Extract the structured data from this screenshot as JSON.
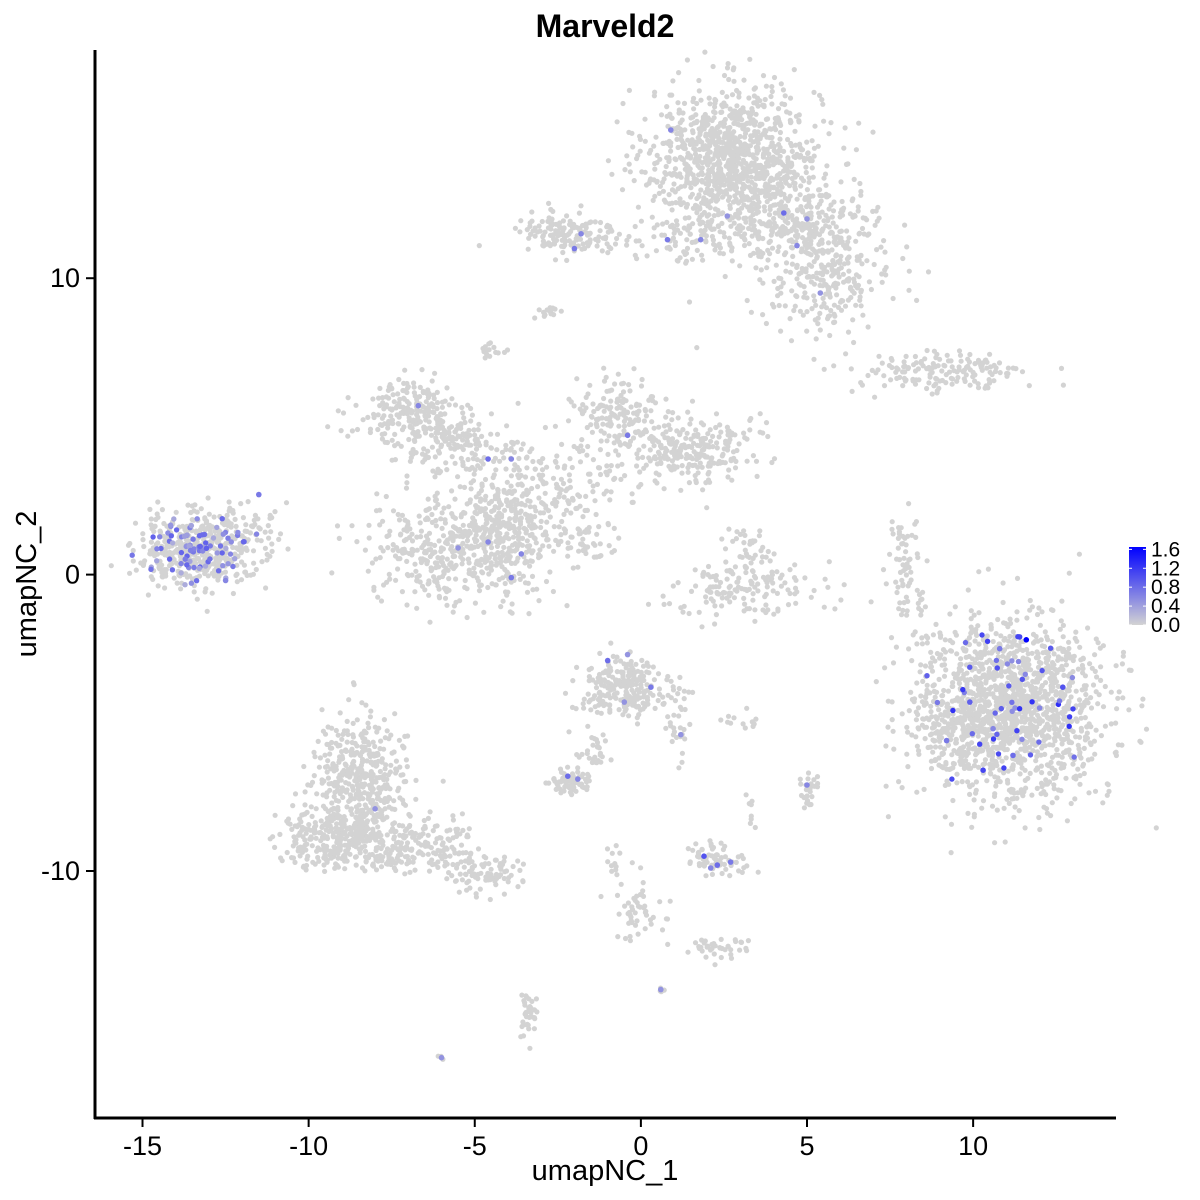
{
  "chart_data": {
    "type": "scatter",
    "title": "Marveld2",
    "xlabel": "umapNC_1",
    "ylabel": "umapNC_2",
    "xlim": [
      -16.4,
      14.3
    ],
    "ylim": [
      -18.3,
      17.7
    ],
    "x_ticks": [
      -15,
      -10,
      -5,
      0,
      5,
      10
    ],
    "x_tick_labels": [
      "-15",
      "-10",
      "-5",
      "0",
      "5",
      "10"
    ],
    "y_ticks": [
      -10,
      0,
      10
    ],
    "y_tick_labels": [
      "-10",
      "0",
      "10"
    ],
    "grid": false,
    "legend_position": "right",
    "colorbar": {
      "min": 0.0,
      "max": 1.65,
      "low_color": "#d3d3d3",
      "high_color": "#0000ff",
      "ticks": [
        0.0,
        0.4,
        0.8,
        1.2,
        1.6
      ],
      "tick_labels": [
        "0.0",
        "0.4",
        "0.8",
        "1.2",
        "1.6"
      ]
    },
    "background_clusters": [
      {
        "cx": 2.8,
        "cy": 14.0,
        "sx": 1.3,
        "sy": 1.2,
        "n": 1100
      },
      {
        "cx": 4.8,
        "cy": 11.8,
        "sx": 1.2,
        "sy": 0.6,
        "n": 260
      },
      {
        "cx": 5.6,
        "cy": 9.9,
        "sx": 1.0,
        "sy": 0.8,
        "n": 240
      },
      {
        "cx": 1.2,
        "cy": 11.3,
        "sx": 1.3,
        "sy": 0.4,
        "n": 80
      },
      {
        "cx": -2.3,
        "cy": 11.5,
        "sx": 0.8,
        "sy": 0.4,
        "n": 140
      },
      {
        "cx": -2.8,
        "cy": 8.9,
        "sx": 0.2,
        "sy": 0.15,
        "n": 15
      },
      {
        "cx": -4.4,
        "cy": 7.5,
        "sx": 0.2,
        "sy": 0.2,
        "n": 15
      },
      {
        "cx": 9.0,
        "cy": 6.8,
        "sx": 1.4,
        "sy": 0.35,
        "n": 160
      },
      {
        "cx": -7.0,
        "cy": 5.5,
        "sx": 0.8,
        "sy": 0.5,
        "n": 200
      },
      {
        "cx": -5.4,
        "cy": 4.4,
        "sx": 0.9,
        "sy": 0.5,
        "n": 160
      },
      {
        "cx": -0.7,
        "cy": 5.5,
        "sx": 0.7,
        "sy": 0.6,
        "n": 150
      },
      {
        "cx": 1.4,
        "cy": 4.2,
        "sx": 1.0,
        "sy": 0.6,
        "n": 260
      },
      {
        "cx": -2.5,
        "cy": 3.2,
        "sx": 1.2,
        "sy": 0.7,
        "n": 150
      },
      {
        "cx": -5.2,
        "cy": 0.9,
        "sx": 1.4,
        "sy": 0.9,
        "n": 550
      },
      {
        "cx": -4.2,
        "cy": 2.0,
        "sx": 0.6,
        "sy": 0.6,
        "n": 120
      },
      {
        "cx": -1.8,
        "cy": 1.2,
        "sx": 0.7,
        "sy": 0.3,
        "n": 45
      },
      {
        "cx": 3.2,
        "cy": -0.4,
        "sx": 1.1,
        "sy": 0.5,
        "n": 150
      },
      {
        "cx": 3.3,
        "cy": 0.9,
        "sx": 0.4,
        "sy": 0.3,
        "n": 30
      },
      {
        "cx": 8.0,
        "cy": 0.3,
        "sx": 0.3,
        "sy": 0.9,
        "n": 70
      },
      {
        "cx": -13.4,
        "cy": 0.8,
        "sx": 0.9,
        "sy": 0.6,
        "n": 420
      },
      {
        "cx": -11.9,
        "cy": 1.6,
        "sx": 0.6,
        "sy": 0.6,
        "n": 50
      },
      {
        "cx": 11.1,
        "cy": -4.6,
        "sx": 1.4,
        "sy": 1.5,
        "n": 1500
      },
      {
        "cx": 8.9,
        "cy": -5.3,
        "sx": 0.5,
        "sy": 0.5,
        "n": 60
      },
      {
        "cx": -0.5,
        "cy": -3.8,
        "sx": 0.7,
        "sy": 0.5,
        "n": 230
      },
      {
        "cx": 1.1,
        "cy": -5.0,
        "sx": 0.2,
        "sy": 0.6,
        "n": 30
      },
      {
        "cx": -2.1,
        "cy": -7.0,
        "sx": 0.3,
        "sy": 0.2,
        "n": 70
      },
      {
        "cx": -1.4,
        "cy": -5.8,
        "sx": 0.3,
        "sy": 0.5,
        "n": 30
      },
      {
        "cx": 2.9,
        "cy": -5.0,
        "sx": 0.4,
        "sy": 0.15,
        "n": 12
      },
      {
        "cx": 5.0,
        "cy": -7.4,
        "sx": 0.15,
        "sy": 0.3,
        "n": 25
      },
      {
        "cx": 3.3,
        "cy": -8.0,
        "sx": 0.1,
        "sy": 0.3,
        "n": 8
      },
      {
        "cx": -8.5,
        "cy": -7.0,
        "sx": 0.7,
        "sy": 1.1,
        "n": 450
      },
      {
        "cx": -9.3,
        "cy": -8.9,
        "sx": 0.9,
        "sy": 0.5,
        "n": 250
      },
      {
        "cx": -6.8,
        "cy": -9.1,
        "sx": 0.9,
        "sy": 0.45,
        "n": 190
      },
      {
        "cx": -4.7,
        "cy": -10.1,
        "sx": 0.6,
        "sy": 0.3,
        "n": 90
      },
      {
        "cx": 2.2,
        "cy": -9.6,
        "sx": 0.4,
        "sy": 0.25,
        "n": 70
      },
      {
        "cx": 2.4,
        "cy": -12.6,
        "sx": 0.4,
        "sy": 0.2,
        "n": 40
      },
      {
        "cx": -0.1,
        "cy": -11.4,
        "sx": 0.4,
        "sy": 0.6,
        "n": 50
      },
      {
        "cx": -0.8,
        "cy": -9.6,
        "sx": 0.2,
        "sy": 0.3,
        "n": 12
      },
      {
        "cx": -3.4,
        "cy": -14.8,
        "sx": 0.2,
        "sy": 0.4,
        "n": 35
      },
      {
        "cx": 0.6,
        "cy": -14.0,
        "sx": 0.05,
        "sy": 0.05,
        "n": 4
      },
      {
        "cx": -6.0,
        "cy": -16.3,
        "sx": 0.05,
        "sy": 0.05,
        "n": 4
      }
    ],
    "expression_clusters": [
      {
        "cx": -13.4,
        "cy": 0.8,
        "sx": 0.85,
        "sy": 0.55,
        "n": 85,
        "vmin": 0.3,
        "vmax": 0.9
      },
      {
        "cx": 11.1,
        "cy": -4.6,
        "sx": 1.2,
        "sy": 1.3,
        "n": 45,
        "vmin": 0.5,
        "vmax": 1.3
      }
    ],
    "expressing_points": [
      {
        "x": 11.6,
        "y": -2.2,
        "v": 1.65
      },
      {
        "x": 11.4,
        "y": -2.1,
        "v": 1.1
      },
      {
        "x": 10.3,
        "y": -6.6,
        "v": 1.1
      },
      {
        "x": 9.9,
        "y": -4.3,
        "v": 0.9
      },
      {
        "x": 12.7,
        "y": -3.8,
        "v": 1.0
      },
      {
        "x": 11.2,
        "y": -6.1,
        "v": 0.8
      },
      {
        "x": 10.8,
        "y": -2.5,
        "v": 0.7
      },
      {
        "x": 9.2,
        "y": -5.6,
        "v": 0.7
      },
      {
        "x": 12.0,
        "y": -4.5,
        "v": 0.6
      },
      {
        "x": 10.6,
        "y": -5.2,
        "v": 0.6
      },
      {
        "x": -1.0,
        "y": -2.9,
        "v": 0.8
      },
      {
        "x": 0.3,
        "y": -3.8,
        "v": 0.7
      },
      {
        "x": -0.4,
        "y": -2.7,
        "v": 0.5
      },
      {
        "x": -0.5,
        "y": -4.3,
        "v": 0.5
      },
      {
        "x": 1.2,
        "y": -5.4,
        "v": 0.5
      },
      {
        "x": -2.2,
        "y": -6.8,
        "v": 0.8
      },
      {
        "x": -1.9,
        "y": -6.9,
        "v": 0.6
      },
      {
        "x": 1.9,
        "y": -9.5,
        "v": 1.0
      },
      {
        "x": 2.3,
        "y": -9.8,
        "v": 0.8
      },
      {
        "x": 2.7,
        "y": -9.7,
        "v": 0.7
      },
      {
        "x": 2.1,
        "y": -9.9,
        "v": 0.6
      },
      {
        "x": 5.0,
        "y": -7.1,
        "v": 0.6
      },
      {
        "x": 0.6,
        "y": -14.0,
        "v": 0.5
      },
      {
        "x": -6.0,
        "y": -16.3,
        "v": 0.5
      },
      {
        "x": -8.0,
        "y": -7.9,
        "v": 0.5
      },
      {
        "x": -4.6,
        "y": 3.9,
        "v": 0.8
      },
      {
        "x": -3.9,
        "y": 3.9,
        "v": 0.6
      },
      {
        "x": -4.6,
        "y": 1.1,
        "v": 0.6
      },
      {
        "x": -3.6,
        "y": 0.7,
        "v": 0.6
      },
      {
        "x": -3.9,
        "y": -0.1,
        "v": 0.7
      },
      {
        "x": -5.5,
        "y": 0.9,
        "v": 0.5
      },
      {
        "x": -6.7,
        "y": 5.7,
        "v": 0.6
      },
      {
        "x": -0.4,
        "y": 4.7,
        "v": 0.7
      },
      {
        "x": 0.8,
        "y": 11.3,
        "v": 0.7
      },
      {
        "x": 1.8,
        "y": 11.3,
        "v": 0.6
      },
      {
        "x": 2.6,
        "y": 12.1,
        "v": 0.5
      },
      {
        "x": 4.3,
        "y": 12.2,
        "v": 0.8
      },
      {
        "x": 5.0,
        "y": 12.0,
        "v": 0.5
      },
      {
        "x": 4.7,
        "y": 11.1,
        "v": 0.6
      },
      {
        "x": 5.4,
        "y": 9.5,
        "v": 0.5
      },
      {
        "x": 0.9,
        "y": 15.0,
        "v": 0.6
      },
      {
        "x": -1.8,
        "y": 11.5,
        "v": 0.6
      },
      {
        "x": -2.0,
        "y": 11.0,
        "v": 0.7
      },
      {
        "x": -11.5,
        "y": 2.7,
        "v": 0.7
      },
      {
        "x": -12.5,
        "y": -0.2,
        "v": 0.6
      }
    ]
  }
}
